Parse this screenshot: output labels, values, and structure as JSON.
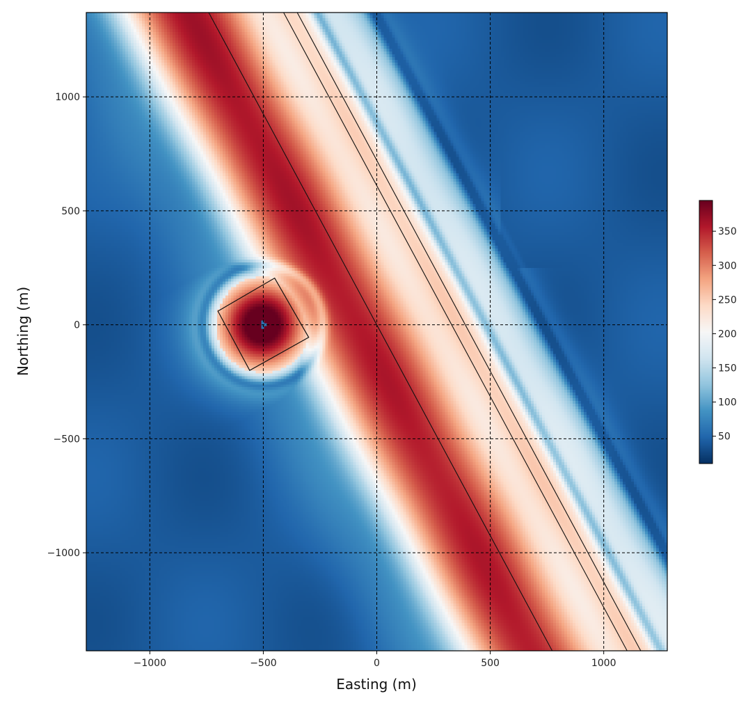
{
  "chart_data": {
    "type": "heatmap",
    "title": "",
    "xlabel": "Easting (m)",
    "ylabel": "Northing (m)",
    "xlim": [
      -1280,
      1280
    ],
    "ylim": [
      -1430,
      1370
    ],
    "grid": true,
    "x_ticks": [
      -1000,
      -500,
      0,
      500,
      1000
    ],
    "y_ticks": [
      -1000,
      -500,
      0,
      500,
      1000
    ],
    "x_tick_labels": [
      "−1000",
      "−500",
      "0",
      "500",
      "1000"
    ],
    "y_tick_labels": [
      "−1000",
      "−500",
      "0",
      "500",
      "1000"
    ],
    "colormap": "RdBu_r",
    "colorbar": {
      "position": "right",
      "range": [
        10,
        395
      ],
      "ticks": [
        50,
        100,
        150,
        200,
        250,
        300,
        350
      ],
      "tick_labels": [
        "50",
        "100",
        "150",
        "200",
        "250",
        "300",
        "350"
      ],
      "label": ""
    },
    "features": {
      "strike_line_slope": -1.85,
      "band_value_peak": 390,
      "background_value": 40,
      "low_value": 15,
      "square_loop": {
        "center": [
          -500,
          0
        ],
        "corners": [
          [
            -700,
            60
          ],
          [
            -450,
            205
          ],
          [
            -300,
            -55
          ],
          [
            -560,
            -200
          ]
        ]
      },
      "survey_lines": [
        {
          "x_at_y0": 0
        },
        {
          "x_at_y0": 330
        },
        {
          "x_at_y0": 390
        }
      ]
    }
  }
}
